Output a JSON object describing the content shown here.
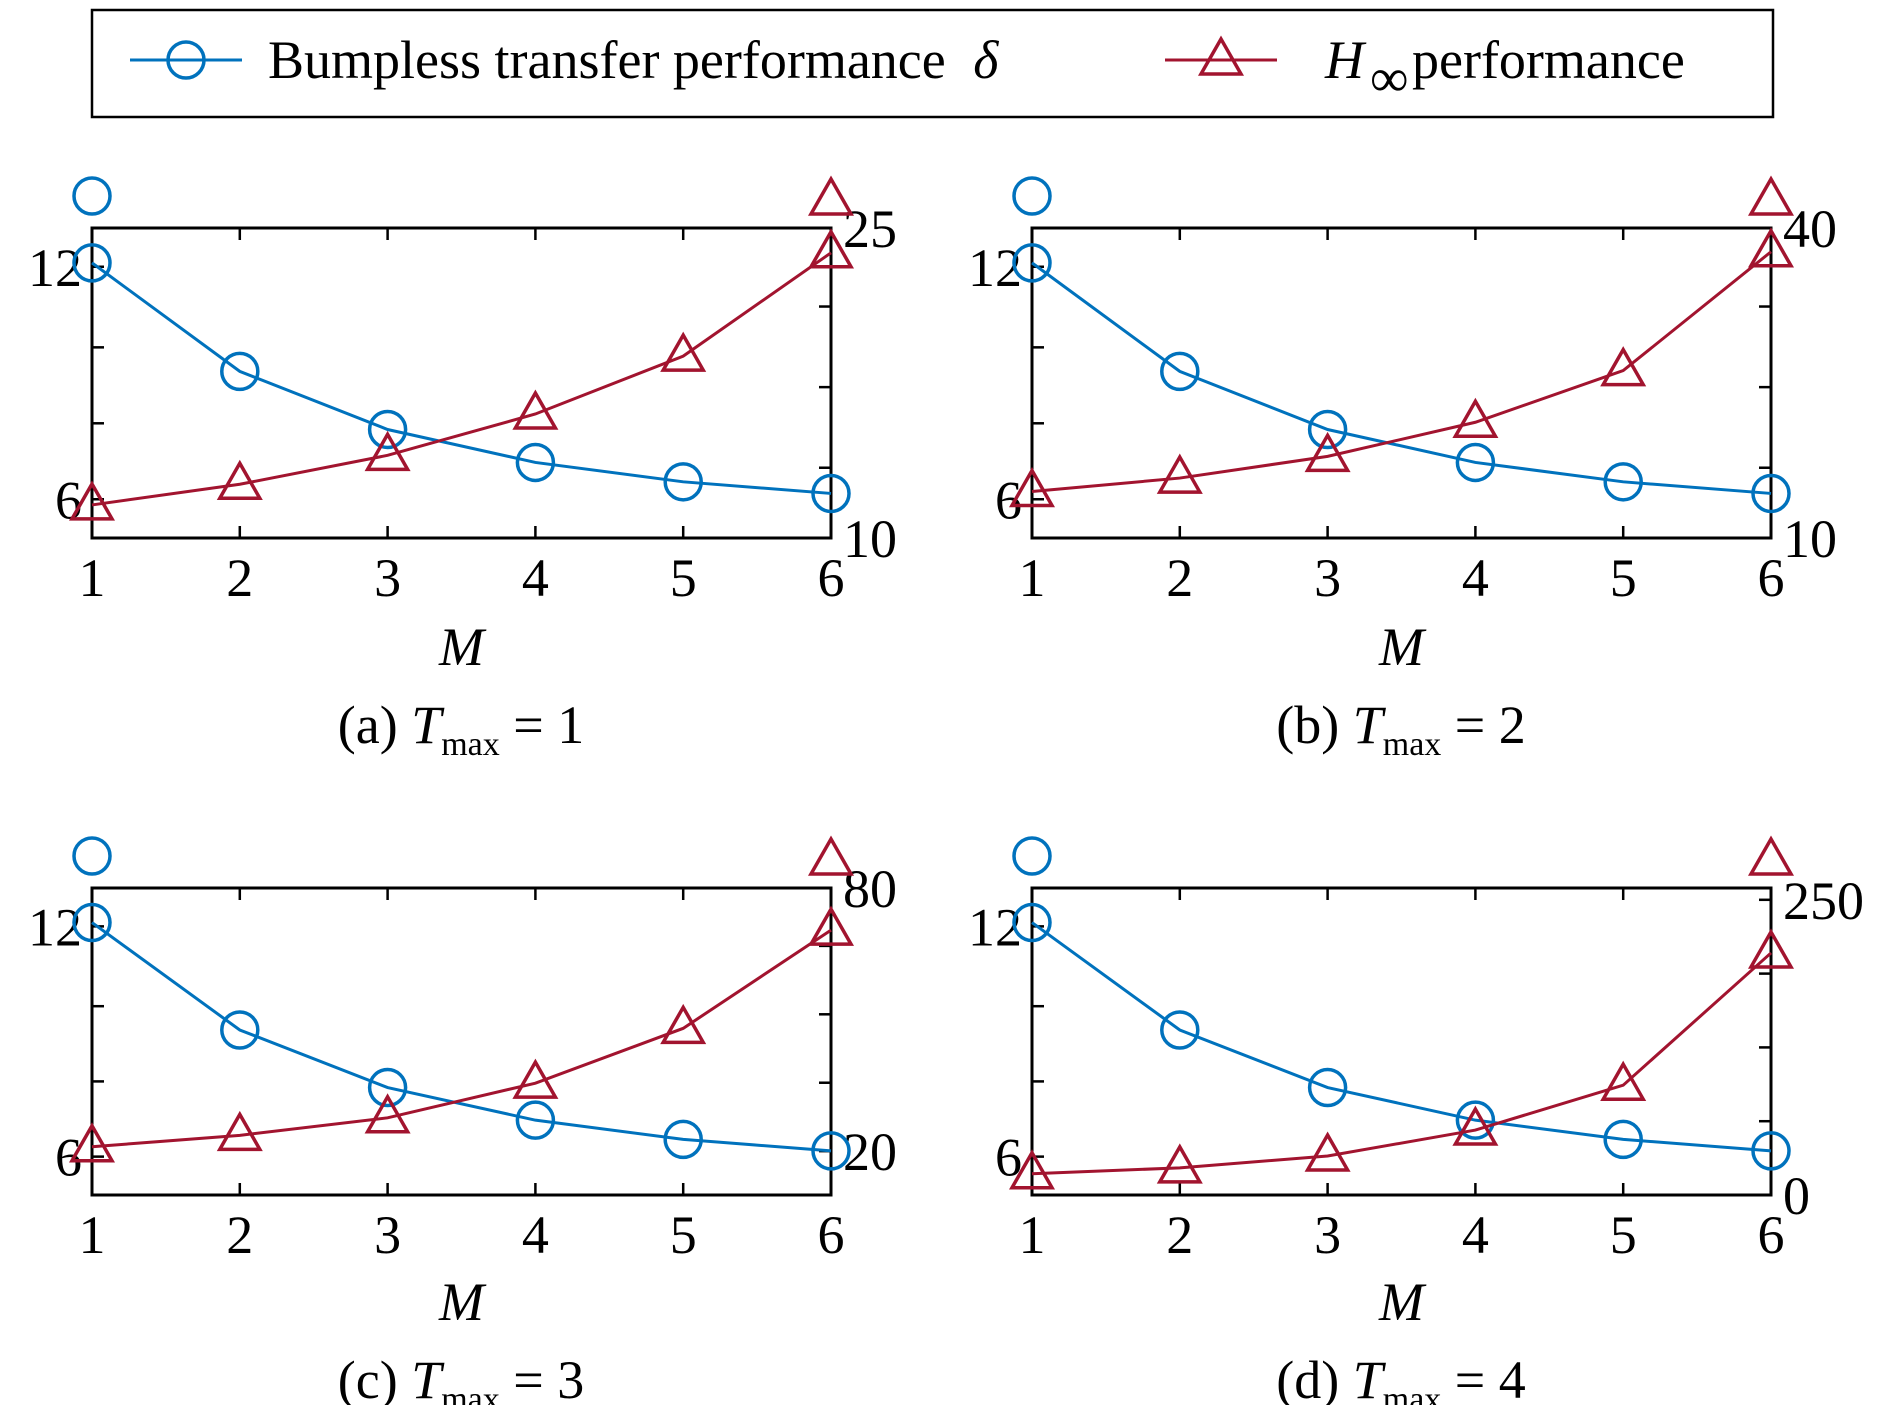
{
  "legend": {
    "series1_label": "Bumpless transfer performance",
    "series1_symbol": "δ",
    "series2_symbol_main": "H",
    "series2_symbol_sub": "∞",
    "series2_label": "performance",
    "series1_marker": "circle",
    "series2_marker": "triangle"
  },
  "colors": {
    "series1": "#0072BD",
    "series2": "#A2142F",
    "axis": "#000000"
  },
  "chart_data": [
    {
      "type": "line",
      "panel": "a",
      "caption": {
        "prefix": "(a)",
        "var": "T",
        "sub": "max",
        "suffix": "= 1"
      },
      "xlabel": "M",
      "x": [
        1,
        2,
        3,
        4,
        5,
        6
      ],
      "xticks": [
        "1",
        "2",
        "3",
        "4",
        "5",
        "6"
      ],
      "xlim": [
        1,
        6
      ],
      "left_axis": {
        "ylim": [
          5,
          13
        ],
        "ticks": [
          6,
          12
        ],
        "ticklabels": [
          "6",
          "12"
        ],
        "minor_ticks": [
          7.96,
          9.92
        ]
      },
      "right_axis": {
        "ylim": [
          10,
          25
        ],
        "ticks": [
          10,
          25
        ],
        "ticklabels": [
          "10",
          "25"
        ],
        "minor_ticks": [
          13.4,
          17.3,
          21.2
        ]
      },
      "series": [
        {
          "axis": "left",
          "values": [
            12.1,
            9.3,
            7.8,
            6.95,
            6.45,
            6.15
          ]
        },
        {
          "axis": "right",
          "values": [
            11.6,
            12.6,
            14.0,
            16.0,
            18.8,
            23.8
          ]
        }
      ]
    },
    {
      "type": "line",
      "panel": "b",
      "caption": {
        "prefix": "(b)",
        "var": "T",
        "sub": "max",
        "suffix": "= 2"
      },
      "xlabel": "M",
      "x": [
        1,
        2,
        3,
        4,
        5,
        6
      ],
      "xticks": [
        "1",
        "2",
        "3",
        "4",
        "5",
        "6"
      ],
      "xlim": [
        1,
        6
      ],
      "left_axis": {
        "ylim": [
          5,
          13
        ],
        "ticks": [
          6,
          12
        ],
        "ticklabels": [
          "6",
          "12"
        ],
        "minor_ticks": [
          7.96,
          9.92
        ]
      },
      "right_axis": {
        "ylim": [
          10,
          40
        ],
        "ticks": [
          10,
          40
        ],
        "ticklabels": [
          "10",
          "40"
        ],
        "minor_ticks": [
          16.8,
          24.6,
          32.4
        ]
      },
      "series": [
        {
          "axis": "left",
          "values": [
            12.1,
            9.3,
            7.8,
            6.95,
            6.45,
            6.15
          ]
        },
        {
          "axis": "right",
          "values": [
            14.5,
            15.8,
            17.9,
            21.2,
            26.2,
            37.7
          ]
        }
      ]
    },
    {
      "type": "line",
      "panel": "c",
      "caption": {
        "prefix": "(c)",
        "var": "T",
        "sub": "max",
        "suffix": "= 3"
      },
      "xlabel": "M",
      "x": [
        1,
        2,
        3,
        4,
        5,
        6
      ],
      "xticks": [
        "1",
        "2",
        "3",
        "4",
        "5",
        "6"
      ],
      "xlim": [
        1,
        6
      ],
      "left_axis": {
        "ylim": [
          5,
          13
        ],
        "ticks": [
          6,
          12
        ],
        "ticklabels": [
          "6",
          "12"
        ],
        "minor_ticks": [
          7.96,
          9.92
        ]
      },
      "right_axis": {
        "ylim": [
          10,
          80
        ],
        "ticks": [
          20,
          80
        ],
        "ticklabels": [
          "20",
          "80"
        ],
        "minor_ticks": [
          35.6,
          51.2,
          66.8
        ]
      },
      "series": [
        {
          "axis": "left",
          "values": [
            12.1,
            9.3,
            7.8,
            6.95,
            6.45,
            6.15
          ]
        },
        {
          "axis": "right",
          "values": [
            21.0,
            23.6,
            27.6,
            35.5,
            48.0,
            70.4
          ]
        }
      ]
    },
    {
      "type": "line",
      "panel": "d",
      "caption": {
        "prefix": "(d)",
        "var": "T",
        "sub": "max",
        "suffix": "= 4"
      },
      "xlabel": "M",
      "x": [
        1,
        2,
        3,
        4,
        5,
        6
      ],
      "xticks": [
        "1",
        "2",
        "3",
        "4",
        "5",
        "6"
      ],
      "xlim": [
        1,
        6
      ],
      "left_axis": {
        "ylim": [
          5,
          13
        ],
        "ticks": [
          6,
          12
        ],
        "ticklabels": [
          "6",
          "12"
        ],
        "minor_ticks": [
          7.96,
          9.92
        ]
      },
      "right_axis": {
        "ylim": [
          0,
          260
        ],
        "ticks": [
          0,
          250
        ],
        "ticklabels": [
          "0",
          "250"
        ],
        "minor_ticks": [
          62.5,
          125,
          187.5
        ]
      },
      "series": [
        {
          "axis": "left",
          "values": [
            12.1,
            9.3,
            7.8,
            6.95,
            6.45,
            6.15
          ]
        },
        {
          "axis": "right",
          "values": [
            18,
            23,
            33,
            55,
            93,
            205
          ]
        }
      ]
    }
  ]
}
